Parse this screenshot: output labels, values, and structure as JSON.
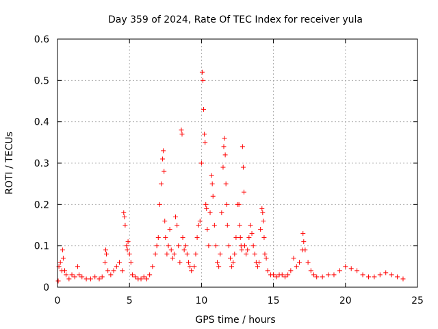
{
  "chart_data": {
    "type": "scatter",
    "title": "Day 359 of 2024, Rate Of TEC Index for receiver yula",
    "xlabel": "GPS time / hours",
    "ylabel": "ROTI / TECUs",
    "xlim": [
      0,
      25
    ],
    "ylim": [
      0,
      0.6
    ],
    "xticks": [
      0,
      5,
      10,
      15,
      20,
      25
    ],
    "yticks": [
      0,
      0.1,
      0.2,
      0.3,
      0.4,
      0.5,
      0.6
    ],
    "ytick_labels": [
      "0",
      "0.1",
      "0.2",
      "0.3",
      "0.4",
      "0.5",
      "0.6"
    ],
    "grid": true,
    "marker": "plus",
    "color": "#ff0000",
    "series": [
      {
        "name": "ROTI",
        "x": [
          0.05,
          0.1,
          0.2,
          0.3,
          0.35,
          0.4,
          0.5,
          0.6,
          0.8,
          1.0,
          1.2,
          1.4,
          1.5,
          1.7,
          2.0,
          2.3,
          2.6,
          2.9,
          3.1,
          3.3,
          3.35,
          3.4,
          3.5,
          3.7,
          3.9,
          4.1,
          4.3,
          4.5,
          4.6,
          4.65,
          4.7,
          4.8,
          4.85,
          4.9,
          5.0,
          5.1,
          5.2,
          5.4,
          5.6,
          5.8,
          6.0,
          6.2,
          6.4,
          6.6,
          6.8,
          6.9,
          7.0,
          7.1,
          7.2,
          7.3,
          7.35,
          7.4,
          7.45,
          7.5,
          7.6,
          7.7,
          7.8,
          7.9,
          8.0,
          8.1,
          8.2,
          8.3,
          8.4,
          8.5,
          8.6,
          8.65,
          8.7,
          8.8,
          8.9,
          9.0,
          9.1,
          9.2,
          9.3,
          9.5,
          9.6,
          9.7,
          9.8,
          9.9,
          10.0,
          10.05,
          10.1,
          10.15,
          10.2,
          10.25,
          10.3,
          10.35,
          10.4,
          10.5,
          10.6,
          10.7,
          10.75,
          10.8,
          10.9,
          11.0,
          11.1,
          11.2,
          11.3,
          11.4,
          11.5,
          11.55,
          11.6,
          11.65,
          11.7,
          11.75,
          11.8,
          11.9,
          12.0,
          12.1,
          12.2,
          12.3,
          12.4,
          12.5,
          12.6,
          12.65,
          12.7,
          12.75,
          12.8,
          12.85,
          12.9,
          12.95,
          13.0,
          13.1,
          13.2,
          13.3,
          13.4,
          13.5,
          13.6,
          13.7,
          13.8,
          13.9,
          14.0,
          14.1,
          14.2,
          14.25,
          14.3,
          14.35,
          14.4,
          14.5,
          14.6,
          14.8,
          15.0,
          15.2,
          15.4,
          15.6,
          15.8,
          16.0,
          16.2,
          16.4,
          16.6,
          16.8,
          17.0,
          17.05,
          17.1,
          17.2,
          17.4,
          17.6,
          17.8,
          18.0,
          18.4,
          18.8,
          19.2,
          19.6,
          20.0,
          20.4,
          20.8,
          21.2,
          21.6,
          22.0,
          22.4,
          22.8,
          23.2,
          23.6,
          24.0
        ],
        "y": [
          0.015,
          0.05,
          0.06,
          0.04,
          0.09,
          0.07,
          0.04,
          0.03,
          0.02,
          0.03,
          0.025,
          0.05,
          0.03,
          0.025,
          0.02,
          0.02,
          0.025,
          0.02,
          0.025,
          0.06,
          0.09,
          0.08,
          0.04,
          0.03,
          0.04,
          0.05,
          0.06,
          0.04,
          0.18,
          0.17,
          0.15,
          0.1,
          0.09,
          0.11,
          0.08,
          0.06,
          0.03,
          0.025,
          0.02,
          0.02,
          0.025,
          0.02,
          0.03,
          0.05,
          0.08,
          0.1,
          0.12,
          0.2,
          0.25,
          0.31,
          0.33,
          0.28,
          0.16,
          0.12,
          0.08,
          0.1,
          0.14,
          0.09,
          0.07,
          0.08,
          0.17,
          0.15,
          0.1,
          0.06,
          0.38,
          0.37,
          0.12,
          0.09,
          0.1,
          0.08,
          0.06,
          0.05,
          0.04,
          0.05,
          0.08,
          0.12,
          0.15,
          0.16,
          0.3,
          0.52,
          0.5,
          0.43,
          0.37,
          0.35,
          0.2,
          0.19,
          0.14,
          0.1,
          0.18,
          0.27,
          0.25,
          0.22,
          0.15,
          0.1,
          0.06,
          0.05,
          0.08,
          0.18,
          0.29,
          0.34,
          0.36,
          0.32,
          0.25,
          0.2,
          0.15,
          0.1,
          0.07,
          0.05,
          0.06,
          0.08,
          0.12,
          0.2,
          0.2,
          0.15,
          0.12,
          0.1,
          0.09,
          0.34,
          0.29,
          0.23,
          0.1,
          0.08,
          0.09,
          0.12,
          0.15,
          0.13,
          0.1,
          0.08,
          0.06,
          0.05,
          0.06,
          0.14,
          0.19,
          0.18,
          0.16,
          0.12,
          0.08,
          0.07,
          0.04,
          0.03,
          0.03,
          0.025,
          0.03,
          0.03,
          0.025,
          0.03,
          0.04,
          0.07,
          0.05,
          0.06,
          0.09,
          0.13,
          0.11,
          0.09,
          0.06,
          0.04,
          0.03,
          0.025,
          0.025,
          0.03,
          0.03,
          0.04,
          0.05,
          0.045,
          0.04,
          0.03,
          0.025,
          0.025,
          0.03,
          0.035,
          0.03,
          0.025,
          0.02
        ]
      }
    ]
  }
}
